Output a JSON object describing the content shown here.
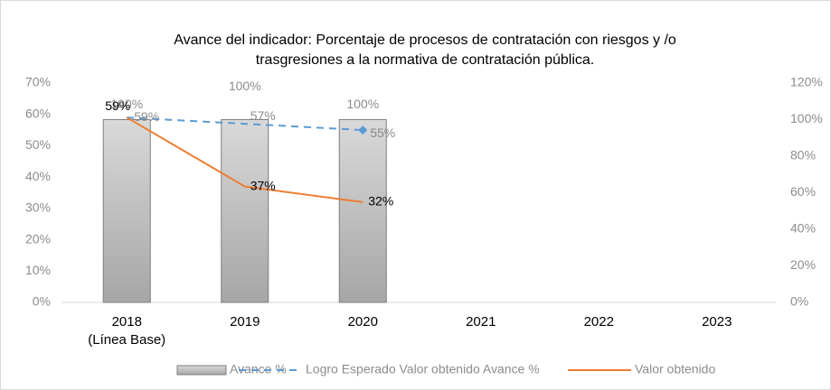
{
  "chart_data": {
    "type": "bar_line",
    "title": "Avance del indicador: Porcentaje  de procesos de contratación  con riesgos y /o\ntrasgresiones  a la normativa de contratación  pública.",
    "categories": [
      "2018\n(Línea Base)",
      "2019",
      "2020",
      "2021",
      "2022",
      "2023"
    ],
    "ylim": [
      0,
      70
    ],
    "yticks": [
      {
        "value": 0,
        "label": "0%"
      },
      {
        "value": 10,
        "label": "10%"
      },
      {
        "value": 20,
        "label": "20%"
      },
      {
        "value": 30,
        "label": "30%"
      },
      {
        "value": 40,
        "label": "40%"
      },
      {
        "value": 50,
        "label": "50%"
      },
      {
        "value": 60,
        "label": "60%"
      },
      {
        "value": 70,
        "label": "70%"
      }
    ],
    "y2lim": [
      0,
      120
    ],
    "y2ticks": [
      {
        "value": 0,
        "label": "0%"
      },
      {
        "value": 20,
        "label": "20%"
      },
      {
        "value": 40,
        "label": "40%"
      },
      {
        "value": 60,
        "label": "60%"
      },
      {
        "value": 80,
        "label": "80%"
      },
      {
        "value": 100,
        "label": "100%"
      },
      {
        "value": 120,
        "label": "120%"
      }
    ],
    "grid": false,
    "legend": "bottom",
    "series": [
      {
        "name": "Avance %",
        "type": "bar",
        "axis": "y2",
        "color": "#c9c9c9",
        "values": [
          100,
          100,
          100,
          null,
          null,
          null
        ],
        "value_labels": [
          "100%",
          "100%",
          "100%",
          null,
          null,
          null
        ]
      },
      {
        "name": "Logro Esperado Valor obtenido Avance %",
        "type": "line",
        "axis": "y",
        "style": "dashed",
        "color": "#5b9bd5",
        "values": [
          59,
          57,
          55,
          null,
          null,
          null
        ],
        "value_labels": [
          "59%",
          "57%",
          "55%",
          null,
          null,
          null
        ]
      },
      {
        "name": "Valor obtenido",
        "type": "line",
        "axis": "y",
        "style": "solid",
        "color": "#ed7d31",
        "values": [
          59,
          37,
          32,
          null,
          null,
          null
        ],
        "value_labels": [
          "59%",
          "37%",
          "32%",
          null,
          null,
          null
        ]
      }
    ]
  }
}
